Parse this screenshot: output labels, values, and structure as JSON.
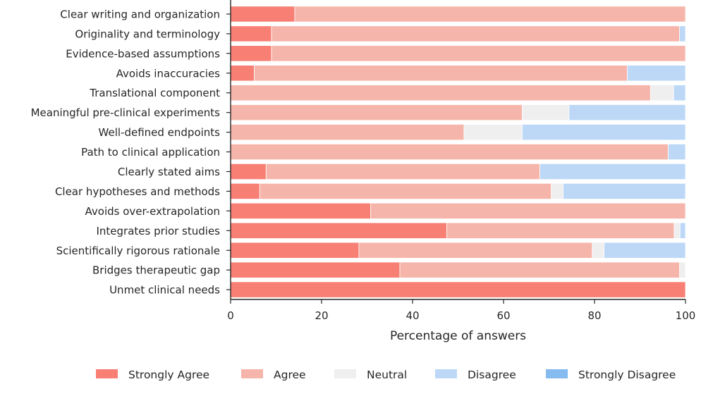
{
  "chart_data": {
    "type": "bar",
    "orientation": "horizontal",
    "stacked": true,
    "xlabel": "Percentage of answers",
    "ylabel": "",
    "xlim": [
      0,
      100
    ],
    "xticks": [
      "0",
      "20",
      "40",
      "60",
      "80",
      "100"
    ],
    "grid": false,
    "legend_position": "bottom",
    "categories": [
      "Clear writing and organization",
      "Originality and terminology",
      "Evidence-based assumptions",
      "Avoids inaccuracies",
      "Translational component",
      "Meaningful pre-clinical experiments",
      "Well-defined endpoints",
      "Path to clinical application",
      "Clearly stated aims",
      "Clear hypotheses and methods",
      "Avoids over-extrapolation",
      "Integrates prior studies",
      "Scientifically rigorous rationale",
      "Bridges therapeutic gap",
      "Unmet clinical needs"
    ],
    "series": [
      {
        "name": "Strongly Agree",
        "color": "#f77f74",
        "values": [
          14.1,
          9.0,
          9.0,
          5.2,
          0,
          0,
          0,
          0,
          7.8,
          6.4,
          30.8,
          47.5,
          28.2,
          37.2,
          100
        ]
      },
      {
        "name": "Agree",
        "color": "#f6b5aa",
        "values": [
          85.9,
          89.7,
          91.0,
          82.0,
          92.3,
          64.1,
          51.3,
          96.2,
          60.2,
          64.1,
          69.2,
          50.0,
          51.3,
          61.5,
          0
        ]
      },
      {
        "name": "Neutral",
        "color": "#efefef",
        "values": [
          0,
          0,
          0,
          0,
          5.1,
          10.3,
          12.8,
          0,
          0,
          2.6,
          0,
          1.3,
          2.6,
          1.3,
          0
        ]
      },
      {
        "name": "Disagree",
        "color": "#bcd8f6",
        "values": [
          0,
          1.3,
          0,
          12.8,
          2.6,
          25.6,
          35.9,
          3.8,
          32.0,
          26.9,
          0,
          1.2,
          17.9,
          0,
          0
        ]
      },
      {
        "name": "Strongly Disagree",
        "color": "#86bbf0",
        "values": [
          0,
          0,
          0,
          0,
          0,
          0,
          0,
          0,
          0,
          0,
          0,
          0,
          0,
          0,
          0
        ]
      }
    ]
  }
}
